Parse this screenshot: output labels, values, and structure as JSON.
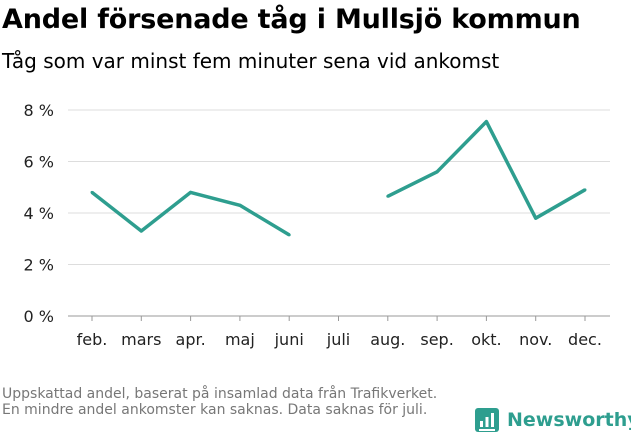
{
  "chart_data": {
    "type": "line",
    "title": "Andel försenade tåg i Mullsjö kommun",
    "subtitle": "Tåg som var minst fem minuter sena vid ankomst",
    "categories": [
      "feb.",
      "mars",
      "apr.",
      "maj",
      "juni",
      "juli",
      "aug.",
      "sep.",
      "okt.",
      "nov.",
      "dec."
    ],
    "series": [
      {
        "values": [
          4.8,
          3.3,
          4.8,
          4.3,
          3.15,
          null,
          4.65,
          5.6,
          7.55,
          3.8,
          4.9
        ]
      }
    ],
    "ylim": [
      0,
      8
    ],
    "yticks": [
      0,
      2,
      4,
      6,
      8
    ],
    "ytick_labels": [
      "0 %",
      "2 %",
      "4 %",
      "6 %",
      "8 %"
    ],
    "xlabel": "",
    "ylabel": "",
    "grid": true,
    "line_color": "#2e9e8f"
  },
  "footnote": "Uppskattad andel, baserat på insamlad data från Trafikverket. En mindre andel ankomster kan saknas. Data saknas för juli.",
  "brand": {
    "name": "Newsworthy",
    "icon": "bar-chart-icon",
    "color": "#2e9e8f"
  }
}
